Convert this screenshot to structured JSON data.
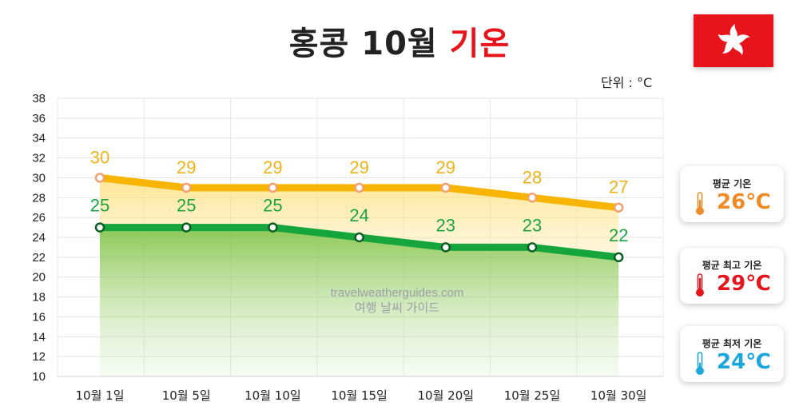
{
  "header": {
    "title_main": "홍콩 10월",
    "title_accent": "기온",
    "unit_label": "단위 : °C"
  },
  "watermark": {
    "line1": "travelweatherguides.com",
    "line2": "여행 날씨 가이드"
  },
  "colors": {
    "high": "#f7b500",
    "low": "#15a53c",
    "accent_red": "#e8141c",
    "avg": "#f08a24",
    "avg_high": "#e8141c",
    "avg_low": "#1aa7e0"
  },
  "summary": [
    {
      "label": "평균 기온",
      "value": "26℃",
      "color": "#f08a24",
      "icon": "thermometer-icon"
    },
    {
      "label": "평균 최고 기온",
      "value": "29℃",
      "color": "#e8141c",
      "icon": "thermometer-icon"
    },
    {
      "label": "평균 최저 기온",
      "value": "24℃",
      "color": "#1aa7e0",
      "icon": "thermometer-icon"
    }
  ],
  "chart_data": {
    "type": "line",
    "title": "홍콩 10월 기온",
    "ylabel": "단위 : °C",
    "categories": [
      "10월 1일",
      "10월 5일",
      "10월 10일",
      "10월 15일",
      "10월 20일",
      "10월 25일",
      "10월 30일"
    ],
    "series": [
      {
        "values": [
          30,
          29,
          29,
          29,
          29,
          28,
          27
        ],
        "color": "#f7b500"
      },
      {
        "values": [
          25,
          25,
          25,
          24,
          23,
          23,
          22
        ],
        "color": "#15a53c"
      }
    ],
    "ylim": [
      10,
      38
    ],
    "yticks": [
      10,
      12,
      14,
      16,
      18,
      20,
      22,
      24,
      26,
      28,
      30,
      32,
      34,
      36,
      38
    ],
    "grid": true
  }
}
